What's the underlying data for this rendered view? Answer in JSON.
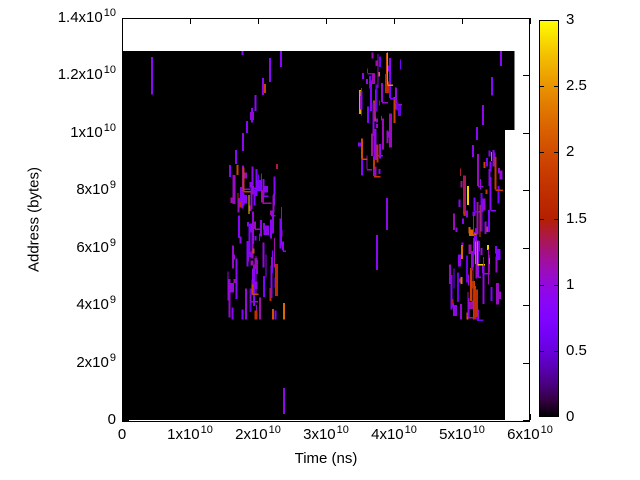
{
  "chart_data": {
    "type": "heatmap",
    "title": "",
    "xlabel": "Time (ns)",
    "ylabel": "Address (bytes)",
    "x_range": [
      0,
      60000000000.0
    ],
    "y_range": [
      0,
      14000000000.0
    ],
    "colorbar_range": [
      0,
      3
    ],
    "grid": false,
    "legend": "colorbar-right",
    "background_value_color": "#000000",
    "page_background": "#ffffff",
    "palette": {
      "name": "gnuplot-default-rgbformulae-7-5-15",
      "anchors": {
        "0": "#000000",
        "0.5": "#6801dd",
        "1": "#9309dd",
        "1.5": "#b42000",
        "2": "#d04b00",
        "2.5": "#e99300",
        "3": "#ffff00"
      }
    },
    "x_ticks": [
      {
        "v": 0,
        "m": "0",
        "e": ""
      },
      {
        "v": 10000000000.0,
        "m": "1x10",
        "e": "10"
      },
      {
        "v": 20000000000.0,
        "m": "2x10",
        "e": "10"
      },
      {
        "v": 30000000000.0,
        "m": "3x10",
        "e": "10"
      },
      {
        "v": 40000000000.0,
        "m": "4x10",
        "e": "10"
      },
      {
        "v": 50000000000.0,
        "m": "5x10",
        "e": "10"
      },
      {
        "v": 60000000000.0,
        "m": "6x10",
        "e": "10"
      }
    ],
    "y_ticks": [
      {
        "v": 0,
        "m": "0",
        "e": ""
      },
      {
        "v": 2000000000.0,
        "m": "2x10",
        "e": "9"
      },
      {
        "v": 4000000000.0,
        "m": "4x10",
        "e": "9"
      },
      {
        "v": 6000000000.0,
        "m": "6x10",
        "e": "9"
      },
      {
        "v": 8000000000.0,
        "m": "8x10",
        "e": "9"
      },
      {
        "v": 10000000000.0,
        "m": "1x10",
        "e": "10"
      },
      {
        "v": 12000000000.0,
        "m": "1.2x10",
        "e": "10"
      },
      {
        "v": 14000000000.0,
        "m": "1.4x10",
        "e": "10"
      }
    ],
    "colorbar_ticks": [
      {
        "v": 0,
        "label": "0"
      },
      {
        "v": 0.5,
        "label": "0.5"
      },
      {
        "v": 1,
        "label": "1"
      },
      {
        "v": 1.5,
        "label": "1.5"
      },
      {
        "v": 2,
        "label": "2"
      },
      {
        "v": 2.5,
        "label": "2.5"
      },
      {
        "v": 3,
        "label": "3"
      }
    ],
    "data_region": {
      "t": [
        0,
        56300000000.0
      ],
      "addr": [
        0,
        12850000000.0
      ]
    },
    "data_region_overhang": {
      "t": [
        56300000000.0,
        57700000000.0
      ],
      "addr": [
        10100000000.0,
        12850000000.0
      ]
    },
    "clusters": [
      {
        "name": "burst-1",
        "t": [
          14800000000.0,
          24500000000.0
        ],
        "addr": [
          3700000000.0,
          9000000000.0
        ],
        "n": 90,
        "len": [
          150000000.0,
          1450000000.0
        ],
        "seed": 101
      },
      {
        "name": "burst-2",
        "t": [
          34100000000.0,
          41200000000.0
        ],
        "addr": [
          8700000000.0,
          12830000000.0
        ],
        "n": 52,
        "len": [
          150000000.0,
          1200000000.0
        ],
        "seed": 202
      },
      {
        "name": "burst-3",
        "t": [
          47300000000.0,
          56300000000.0
        ],
        "addr": [
          3700000000.0,
          9450000000.0
        ],
        "n": 85,
        "len": [
          150000000.0,
          1350000000.0
        ],
        "seed": 303
      }
    ],
    "marks": [
      {
        "t": 4400000000.0,
        "a": 12640000000.0,
        "l": 1300000000.0,
        "v": 0.9
      },
      {
        "t": 17700000000.0,
        "a": 12920000000.0,
        "l": 210000000.0,
        "v": 0.9
      },
      {
        "t": 15900000000.0,
        "a": 8880000000.0,
        "l": 420000000.0,
        "v": 0.85
      },
      {
        "t": 16800000000.0,
        "a": 9400000000.0,
        "l": 490000000.0,
        "v": 0.9
      },
      {
        "t": 17800000000.0,
        "a": 9990000000.0,
        "l": 630000000.0,
        "v": 0.95
      },
      {
        "t": 18400000000.0,
        "a": 10410000000.0,
        "l": 420000000.0,
        "v": 0.85
      },
      {
        "t": 19100000000.0,
        "a": 10860000000.0,
        "l": 490000000.0,
        "v": 0.9
      },
      {
        "t": 19120000000.0,
        "a": 10730000000.0,
        "l": 280000000.0,
        "v": 1.0,
        "w": 4
      },
      {
        "t": 19600000000.0,
        "a": 11320000000.0,
        "l": 560000000.0,
        "v": 0.9
      },
      {
        "t": 20700000000.0,
        "a": 11910000000.0,
        "l": 590000000.0,
        "v": 0.95
      },
      {
        "t": 21030000000.0,
        "a": 11700000000.0,
        "l": 310000000.0,
        "v": 1.9
      },
      {
        "t": 21800000000.0,
        "a": 12610000000.0,
        "l": 840000000.0,
        "v": 0.9
      },
      {
        "t": 23400000000.0,
        "a": 12850000000.0,
        "l": 560000000.0,
        "v": 0.85
      },
      {
        "t": 39000000000.0,
        "a": 7730000000.0,
        "l": 1110000000.0,
        "v": 0.95
      },
      {
        "t": 37500000000.0,
        "a": 6440000000.0,
        "l": 1220000000.0,
        "v": 0.9
      },
      {
        "t": 37900000000.0,
        "a": 8740000000.0,
        "l": 170000000.0,
        "v": 0.8
      },
      {
        "t": 23820000000.0,
        "a": 1114000000.0,
        "l": 910000000.0,
        "v": 0.95
      },
      {
        "t": 55700000000.0,
        "a": 12850000000.0,
        "l": 520000000.0,
        "v": 0.9
      },
      {
        "t": 54400000000.0,
        "a": 11940000000.0,
        "l": 630000000.0,
        "v": 0.85
      },
      {
        "t": 53100000000.0,
        "a": 10970000000.0,
        "l": 700000000.0,
        "v": 0.95
      },
      {
        "t": 52200000000.0,
        "a": 10200000000.0,
        "l": 450000000.0,
        "v": 0.85
      },
      {
        "t": 51600000000.0,
        "a": 9580000000.0,
        "l": 420000000.0,
        "v": 0.9
      },
      {
        "t": 54600000000.0,
        "a": 9400000000.0,
        "l": 350000000.0,
        "v": 0.85
      },
      {
        "t": 35000000000.0,
        "a": 11490000000.0,
        "l": 840000000.0,
        "v": 2.6
      },
      {
        "t": 39000000000.0,
        "a": 12780000000.0,
        "l": 1220000000.0,
        "v": 2.0
      },
      {
        "t": 40100000000.0,
        "a": 11250000000.0,
        "l": 910000000.0,
        "v": 1.9
      },
      {
        "t": 53800000000.0,
        "a": 6090000000.0,
        "l": 170000000.0,
        "v": 2.8
      }
    ]
  }
}
